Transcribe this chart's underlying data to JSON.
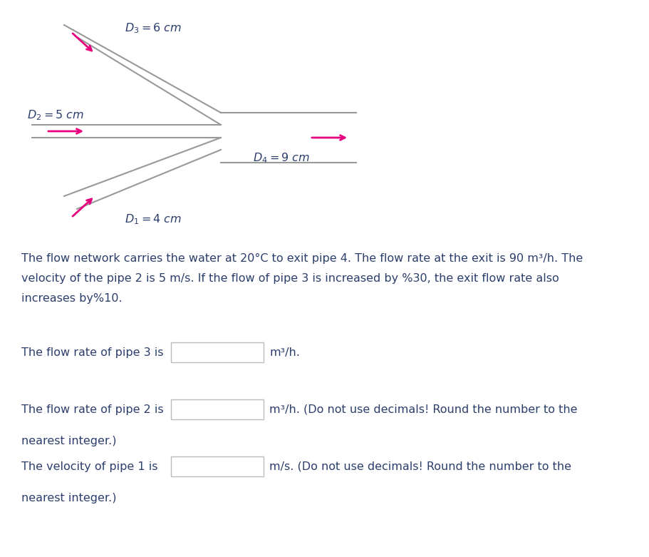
{
  "bg_color": "#ffffff",
  "arrow_color": "#e6007e",
  "line_color": "#999999",
  "text_color": "#2c3e6b",
  "fig_width": 9.11,
  "fig_height": 7.81,
  "dpi": 100,
  "diagram": {
    "pipe3_label": "$D_3=6$ cm",
    "pipe2_label": "$D_2=5$ cm",
    "pipe1_label": "$D_1=4$ cm",
    "pipe4_label": "$D_4=9$ cm"
  },
  "problem_text_lines": [
    "The flow network carries the water at 20°C to exit pipe 4. The flow rate at the exit is 90 m³/h. The",
    "velocity of the pipe 2 is 5 m/s. If the flow of pipe 3 is increased by %30, the exit flow rate also",
    "increases by%10."
  ],
  "questions": [
    {
      "prefix": "The flow rate of pipe 3 is",
      "suffix": "m³/h.",
      "extra": ""
    },
    {
      "prefix": "The flow rate of pipe 2 is",
      "suffix": "m³/h. (Do not use decimals! Round the number to the",
      "extra": "nearest integer.)"
    },
    {
      "prefix": "The velocity of pipe 1 is",
      "suffix": "m/s. (Do not use decimals! Round the number to the",
      "extra": "nearest integer.)"
    }
  ]
}
